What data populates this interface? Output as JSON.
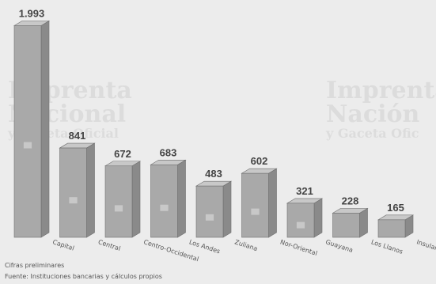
{
  "chart_data": {
    "type": "bar",
    "style": "3d",
    "categories": [
      "Capital",
      "Central",
      "Centro-Occidental",
      "Los Andes",
      "Zuliana",
      "Nor-Oriental",
      "Guayana",
      "Los Llanos",
      "Insular"
    ],
    "value_labels": [
      "1.993",
      "841",
      "672",
      "683",
      "483",
      "602",
      "321",
      "228",
      "165"
    ],
    "values": [
      1993,
      841,
      672,
      683,
      483,
      602,
      321,
      228,
      165
    ],
    "ylim": [
      0,
      2100
    ],
    "grid": false,
    "legend": "none",
    "colors": {
      "bar_front": "#a9a9a9",
      "bar_side": "#8a8a8a",
      "bar_top": "#c8c8c8",
      "value_label": "#444444",
      "category_label": "#555555",
      "background": "#ececec"
    }
  },
  "notes": [
    "Cifras preliminares",
    "Fuente: Instituciones bancarias y cálculos propios"
  ],
  "watermark": {
    "lines": [
      "Imprenta",
      "Nacional",
      "y Gaceta Oficial"
    ],
    "repeat_lines": [
      "Imprenta",
      "Nación",
      "y Gaceta Ofic"
    ]
  }
}
